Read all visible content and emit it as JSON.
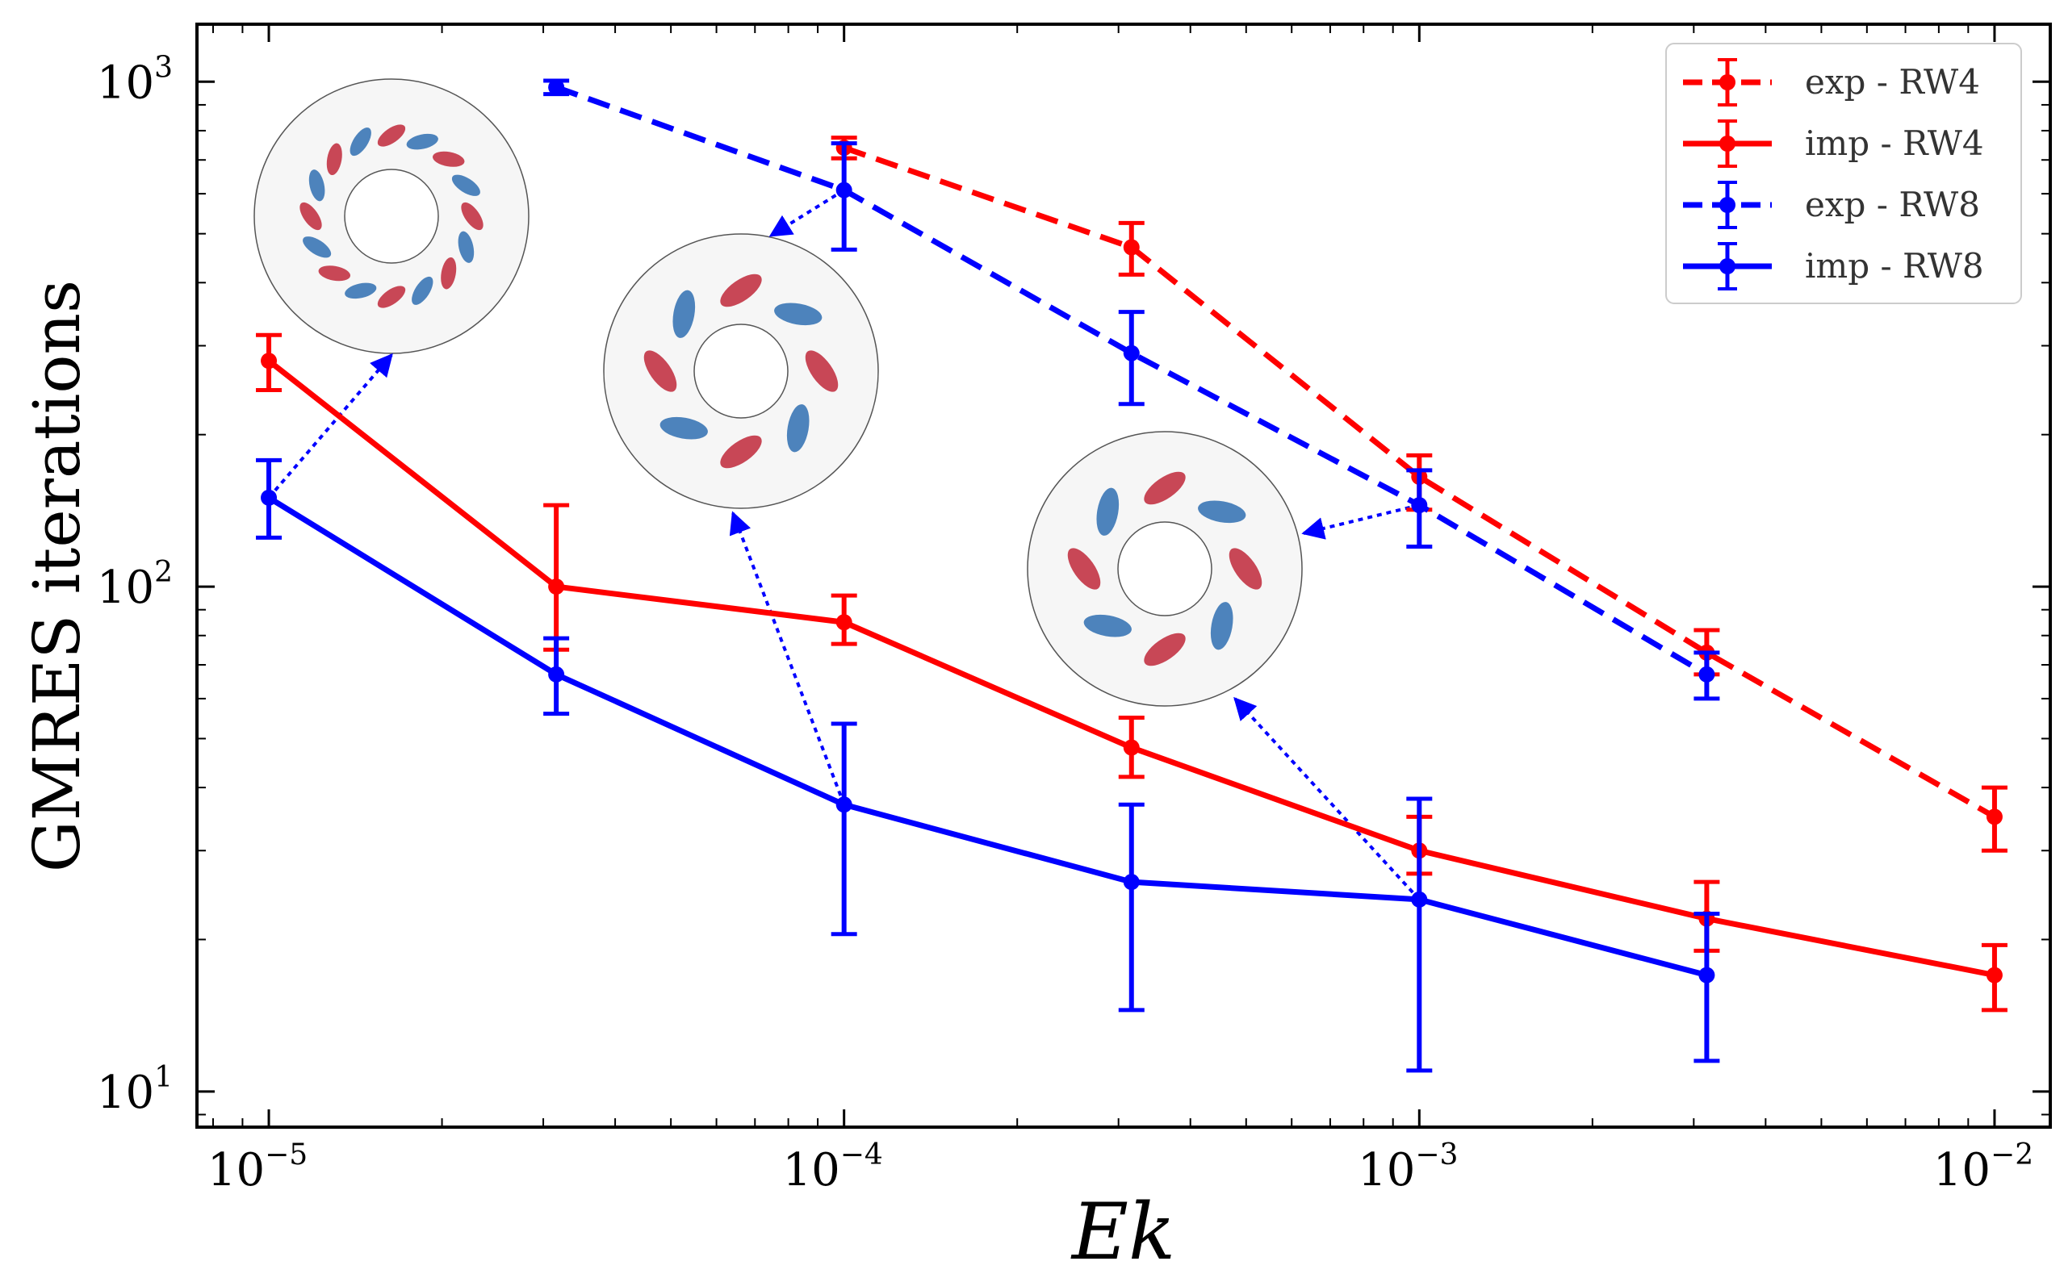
{
  "chart_data": {
    "type": "line",
    "title": "",
    "xlabel": "Ek",
    "ylabel": "GMRES iterations",
    "xscale": "log",
    "yscale": "log",
    "xlim": [
      7.5e-06,
      0.0125
    ],
    "ylim": [
      8.5,
      1300
    ],
    "x_ticks": [
      {
        "value": 1e-05,
        "base": "10",
        "exp": "−5"
      },
      {
        "value": 0.0001,
        "base": "10",
        "exp": "−4"
      },
      {
        "value": 0.001,
        "base": "10",
        "exp": "−3"
      },
      {
        "value": 0.01,
        "base": "10",
        "exp": "−2"
      }
    ],
    "y_ticks": [
      {
        "value": 10,
        "base": "10",
        "exp": "1"
      },
      {
        "value": 100,
        "base": "10",
        "exp": "2"
      },
      {
        "value": 1000,
        "base": "10",
        "exp": "3"
      }
    ],
    "grid": false,
    "legend_position": "top-right",
    "series": [
      {
        "name": "exp - RW4",
        "color": "#ff0000",
        "linestyle": "dashed",
        "x": [
          0.0001,
          0.000316,
          0.001,
          0.00316,
          0.01
        ],
        "y": [
          740,
          470,
          165,
          74,
          35
        ],
        "yerr_low": [
          705,
          415,
          142,
          67,
          30
        ],
        "yerr_high": [
          775,
          525,
          182,
          82,
          40
        ]
      },
      {
        "name": "imp - RW4",
        "color": "#ff0000",
        "linestyle": "solid",
        "x": [
          1e-05,
          3.16e-05,
          0.0001,
          0.000316,
          0.001,
          0.00316,
          0.01
        ],
        "y": [
          280,
          100,
          85,
          48,
          30,
          22,
          17
        ],
        "yerr_low": [
          245,
          75,
          77,
          42,
          27,
          19,
          14.5
        ],
        "yerr_high": [
          315,
          145,
          96,
          55,
          35,
          26,
          19.5
        ]
      },
      {
        "name": "exp - RW8",
        "color": "#0000ff",
        "linestyle": "dashed",
        "x": [
          3.16e-05,
          0.0001,
          0.000316,
          0.001,
          0.00316
        ],
        "y": [
          975,
          610,
          290,
          145,
          67
        ],
        "yerr_low": [
          945,
          465,
          230,
          120,
          60
        ],
        "yerr_high": [
          1005,
          755,
          350,
          170,
          74
        ]
      },
      {
        "name": "imp - RW8",
        "color": "#0000ff",
        "linestyle": "solid",
        "x": [
          1e-05,
          3.16e-05,
          0.0001,
          0.000316,
          0.001,
          0.00316
        ],
        "y": [
          150,
          67,
          37,
          26,
          24,
          17
        ],
        "yerr_low": [
          125,
          56,
          20.5,
          14.5,
          11,
          11.5
        ],
        "yerr_high": [
          178,
          79,
          53.5,
          37,
          38,
          22.5
        ]
      }
    ],
    "insets": [
      {
        "name": "RW8 pattern at Ek=1e-5",
        "arms": 16,
        "anchor_x": 1e-05,
        "anchor_y": 150
      },
      {
        "name": "RW4 pattern at Ek=1e-4",
        "arms": 8,
        "anchor_x": 0.0001,
        "anchor_y": 610
      },
      {
        "name": "RW4 pattern at Ek=1e-3",
        "arms": 8,
        "anchor_x": 0.001,
        "anchor_y": 145
      }
    ]
  }
}
